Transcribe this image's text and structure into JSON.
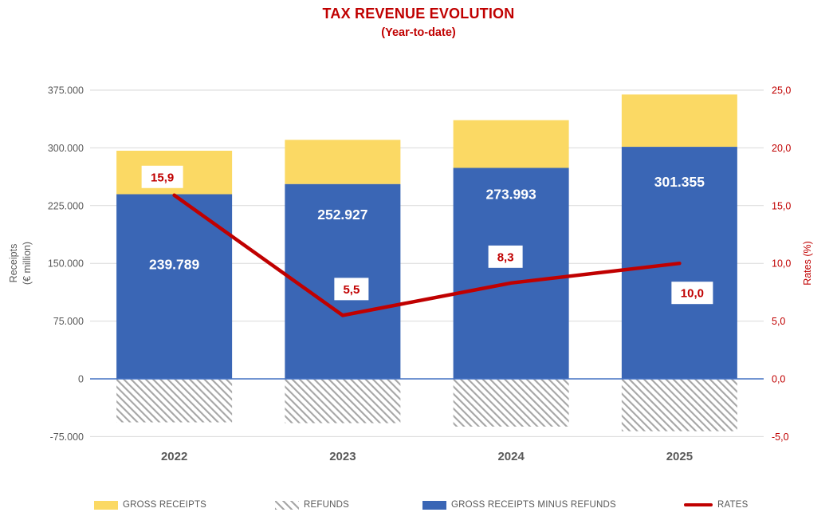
{
  "title": "TAX REVENUE EVOLUTION",
  "subtitle": "(Year-to-date)",
  "colors": {
    "title": "#C00000",
    "gross_receipts": "#FBD964",
    "net_receipts": "#3A66B5",
    "rates_line": "#C00000",
    "refunds_hatch": "#A6A6A6",
    "gridline": "#D9D9D9",
    "zero_line": "#4472C4",
    "axis_text": "#595959"
  },
  "chart_data": {
    "type": "bar",
    "subtype": "stacked bars with secondary-axis line (combo chart)",
    "categories": [
      "2022",
      "2023",
      "2024",
      "2025"
    ],
    "series": [
      {
        "name": "GROSS RECEIPTS",
        "type": "bar",
        "role": "stack-top",
        "color": "#FBD964",
        "values": [
          296289,
          310427,
          335993,
          369355
        ]
      },
      {
        "name": "REFUNDS",
        "type": "bar",
        "role": "negative-hatch",
        "pattern": "diagonal-hatch",
        "color": "#A6A6A6",
        "values": [
          -56500,
          -57500,
          -62000,
          -68000
        ]
      },
      {
        "name": "GROSS RECEIPTS MINUS REFUNDS",
        "type": "bar",
        "role": "stack-base",
        "color": "#3A66B5",
        "values": [
          239789,
          252927,
          273993,
          301355
        ],
        "labels": [
          "239.789",
          "252.927",
          "273.993",
          "301.355"
        ]
      },
      {
        "name": "RATES",
        "type": "line",
        "axis": "right",
        "color": "#C00000",
        "values": [
          15.9,
          5.5,
          8.3,
          10.0
        ],
        "labels": [
          "15,9",
          "5,5",
          "8,3",
          "10,0"
        ]
      }
    ],
    "left_axis": {
      "title_lines": [
        "Receipts",
        "(€ million)"
      ],
      "ticks": [
        "375.000",
        "300.000",
        "225.000",
        "150.000",
        "75.000",
        "0",
        "-75.000"
      ],
      "tick_values": [
        375000,
        300000,
        225000,
        150000,
        75000,
        0,
        -75000
      ],
      "range": [
        -75000,
        375000
      ]
    },
    "right_axis": {
      "title": "Rates (%)",
      "ticks": [
        "25,0",
        "20,0",
        "15,0",
        "10,0",
        "5,0",
        "0,0",
        "-5,0"
      ],
      "tick_values": [
        25,
        20,
        15,
        10,
        5,
        0,
        -5
      ],
      "range": [
        -5,
        25
      ]
    },
    "legend": [
      {
        "label": "GROSS RECEIPTS",
        "swatch": "yellow-rect"
      },
      {
        "label": "REFUNDS",
        "swatch": "hatch-rect"
      },
      {
        "label": "GROSS RECEIPTS MINUS REFUNDS",
        "swatch": "blue-rect"
      },
      {
        "label": "RATES",
        "swatch": "red-line"
      }
    ],
    "grid": true,
    "legend_position": "bottom"
  }
}
